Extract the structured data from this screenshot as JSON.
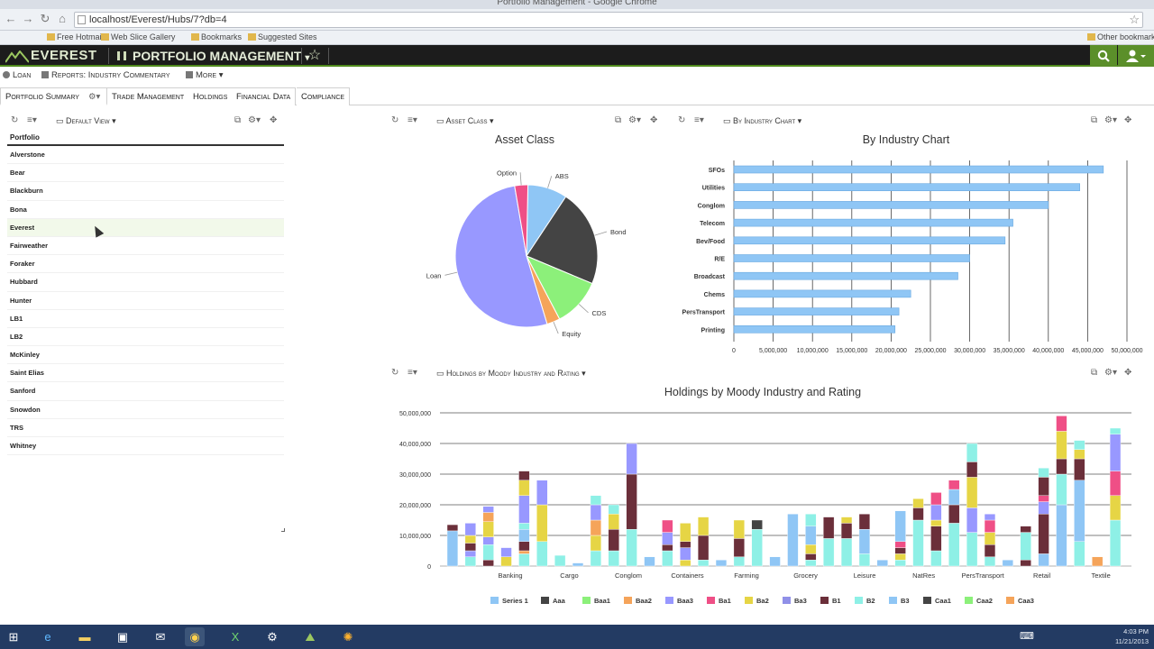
{
  "browser": {
    "window_title": "Portfolio Management - Google Chrome",
    "url": "localhost/Everest/Hubs/7?db=4",
    "bookmarks": [
      "Free Hotmail",
      "Web Slice Gallery",
      "Bookmarks",
      "Suggested Sites",
      "Other bookmarks"
    ]
  },
  "app": {
    "brand": "EVEREST",
    "module": "PORTFOLIO MANAGEMENT",
    "colors": {
      "header_bg": "#1c1c1c",
      "accent": "#5b8f2a"
    }
  },
  "subnav": {
    "loan": "Loan",
    "reports": "Reports: Industry Commentary",
    "more": "More"
  },
  "tabs": [
    {
      "label": "Portfolio Summary",
      "active": true
    },
    {
      "label": "Trade Management"
    },
    {
      "label": "Holdings"
    },
    {
      "label": "Financial Data"
    },
    {
      "label": "Compliance"
    }
  ],
  "portfolio_widget": {
    "view_label": "Default View",
    "column_header": "Portfolio",
    "rows": [
      "Alverstone",
      "Bear",
      "Blackburn",
      "Bona",
      "Everest",
      "Fairweather",
      "Foraker",
      "Hubbard",
      "Hunter",
      "LB1",
      "LB2",
      "McKinley",
      "Saint Elias",
      "Sanford",
      "Snowdon",
      "TRS",
      "Whitney"
    ],
    "highlighted_row": "Everest"
  },
  "asset_widget": {
    "view_label": "Asset Class",
    "title": "Asset Class"
  },
  "industry_widget": {
    "view_label": "By Industry Chart",
    "title": "By Industry Chart"
  },
  "holdings_widget": {
    "view_label": "Holdings by Moody Industry and Rating",
    "title": "Holdings by Moody Industry and Rating"
  },
  "taskbar": {
    "time": "4:03 PM",
    "date": "11/21/2013"
  },
  "chart_data": [
    {
      "type": "pie",
      "title": "Asset Class",
      "slices": [
        {
          "label": "ABS",
          "value": 9,
          "color": "#8fc6f5"
        },
        {
          "label": "Bond",
          "value": 22,
          "color": "#444444"
        },
        {
          "label": "CDS",
          "value": 11,
          "color": "#8cf07a"
        },
        {
          "label": "Equity",
          "value": 3,
          "color": "#f5a45a"
        },
        {
          "label": "Loan",
          "value": 52,
          "color": "#9898ff"
        },
        {
          "label": "Option",
          "value": 3,
          "color": "#ef4f86"
        }
      ]
    },
    {
      "type": "bar",
      "orientation": "horizontal",
      "title": "By Industry Chart",
      "categories": [
        "SFOs",
        "Utilities",
        "Conglom",
        "Telecom",
        "Bev/Food",
        "R/E",
        "Broadcast",
        "Chems",
        "PersTransport",
        "Printing"
      ],
      "values": [
        47000000,
        44000000,
        40000000,
        35500000,
        34500000,
        30000000,
        28500000,
        22500000,
        21000000,
        20500000
      ],
      "xlim": [
        0,
        50000000
      ],
      "x_ticks": [
        "0",
        "5,000,000",
        "10,000,000",
        "15,000,000",
        "20,000,000",
        "25,000,000",
        "30,000,000",
        "35,000,000",
        "40,000,000",
        "45,000,000",
        "50,000,000"
      ],
      "color": "#8fc6f5",
      "grid": true
    },
    {
      "type": "bar",
      "stacked": true,
      "title": "Holdings by Moody Industry and Rating",
      "x_labels": [
        "Banking",
        "Cargo",
        "Conglom",
        "Containers",
        "Farming",
        "Grocery",
        "Leisure",
        "NatRes",
        "PersTransport",
        "Retail",
        "Textile"
      ],
      "ylim": [
        0,
        50000000
      ],
      "y_ticks": [
        "0",
        "10,000,000",
        "20,000,000",
        "30,000,000",
        "40,000,000",
        "50,000,000"
      ],
      "legend_position": "bottom",
      "series": [
        {
          "name": "Series 1",
          "color": "#8fc6f5"
        },
        {
          "name": "Aaa",
          "color": "#444444"
        },
        {
          "name": "Baa1",
          "color": "#8cf07a"
        },
        {
          "name": "Baa2",
          "color": "#f5a45a"
        },
        {
          "name": "Baa3",
          "color": "#9898ff"
        },
        {
          "name": "Ba1",
          "color": "#ef4f86"
        },
        {
          "name": "Ba2",
          "color": "#e6d545"
        },
        {
          "name": "Ba3",
          "color": "#9090e8"
        },
        {
          "name": "B1",
          "color": "#6b2f3a"
        },
        {
          "name": "B2",
          "color": "#8ef0e6"
        },
        {
          "name": "B3",
          "color": "#8fc6f5"
        },
        {
          "name": "Caa1",
          "color": "#444444"
        },
        {
          "name": "Caa2",
          "color": "#8cf07a"
        },
        {
          "name": "Caa3",
          "color": "#f5a45a"
        }
      ],
      "columns": [
        [
          [
            0,
            11.5
          ],
          [
            8,
            2
          ]
        ],
        [
          [
            9,
            3
          ],
          [
            4,
            2
          ],
          [
            8,
            2.5
          ],
          [
            6,
            2.5
          ],
          [
            4,
            4
          ]
        ],
        [
          [
            8,
            2
          ],
          [
            9,
            5
          ],
          [
            4,
            2.5
          ],
          [
            6,
            5
          ],
          [
            3,
            3
          ],
          [
            4,
            2
          ]
        ],
        [
          [
            6,
            3
          ],
          [
            4,
            3
          ]
        ],
        [
          [
            9,
            4
          ],
          [
            3,
            1
          ],
          [
            8,
            3
          ],
          [
            0,
            4
          ],
          [
            9,
            2
          ],
          [
            4,
            9
          ],
          [
            6,
            5
          ],
          [
            8,
            3
          ]
        ],
        [
          [
            9,
            8
          ],
          [
            6,
            12
          ],
          [
            4,
            8
          ]
        ],
        [
          [
            9,
            3.5
          ]
        ],
        [
          [
            0,
            1
          ]
        ],
        [
          [
            9,
            5
          ],
          [
            6,
            5
          ],
          [
            3,
            5
          ],
          [
            4,
            5
          ],
          [
            9,
            3
          ]
        ],
        [
          [
            9,
            5
          ],
          [
            8,
            7
          ],
          [
            6,
            5
          ],
          [
            9,
            3
          ]
        ],
        [
          [
            9,
            12
          ],
          [
            8,
            18
          ],
          [
            4,
            10
          ]
        ],
        [
          [
            0,
            3
          ]
        ],
        [
          [
            9,
            5
          ],
          [
            8,
            2
          ],
          [
            4,
            4
          ],
          [
            5,
            4
          ]
        ],
        [
          [
            6,
            2
          ],
          [
            4,
            4
          ],
          [
            8,
            2
          ],
          [
            6,
            6
          ]
        ],
        [
          [
            9,
            2
          ],
          [
            8,
            8
          ],
          [
            6,
            6
          ]
        ],
        [
          [
            0,
            2
          ]
        ],
        [
          [
            9,
            3
          ],
          [
            8,
            6
          ],
          [
            6,
            6
          ]
        ],
        [
          [
            9,
            12
          ],
          [
            1,
            3
          ]
        ],
        [
          [
            0,
            3
          ]
        ],
        [
          [
            0,
            17
          ]
        ],
        [
          [
            9,
            2
          ],
          [
            8,
            2
          ],
          [
            6,
            3
          ],
          [
            0,
            6
          ],
          [
            9,
            4
          ]
        ],
        [
          [
            9,
            9
          ],
          [
            8,
            7
          ]
        ],
        [
          [
            9,
            9
          ],
          [
            8,
            5
          ],
          [
            6,
            2
          ]
        ],
        [
          [
            9,
            4
          ],
          [
            0,
            8
          ],
          [
            8,
            5
          ]
        ],
        [
          [
            0,
            2
          ]
        ],
        [
          [
            9,
            2
          ],
          [
            6,
            2
          ],
          [
            8,
            2
          ],
          [
            5,
            2
          ],
          [
            0,
            10
          ]
        ],
        [
          [
            9,
            15
          ],
          [
            8,
            4
          ],
          [
            6,
            3
          ]
        ],
        [
          [
            9,
            5
          ],
          [
            8,
            8
          ],
          [
            6,
            2
          ],
          [
            4,
            5
          ],
          [
            5,
            4
          ]
        ],
        [
          [
            9,
            14
          ],
          [
            8,
            6
          ],
          [
            0,
            5
          ],
          [
            5,
            3
          ]
        ],
        [
          [
            9,
            11
          ],
          [
            4,
            8
          ],
          [
            6,
            10
          ],
          [
            8,
            5
          ],
          [
            9,
            6
          ]
        ],
        [
          [
            9,
            3
          ],
          [
            8,
            4
          ],
          [
            6,
            4
          ],
          [
            5,
            4
          ],
          [
            4,
            2
          ]
        ],
        [
          [
            0,
            2
          ]
        ],
        [
          [
            8,
            2
          ],
          [
            9,
            9
          ],
          [
            8,
            2
          ]
        ],
        [
          [
            0,
            4
          ],
          [
            8,
            13
          ],
          [
            4,
            4
          ],
          [
            5,
            2
          ],
          [
            8,
            6
          ],
          [
            9,
            3
          ]
        ],
        [
          [
            0,
            20
          ],
          [
            9,
            10
          ],
          [
            8,
            5
          ],
          [
            6,
            9
          ],
          [
            5,
            5
          ]
        ],
        [
          [
            9,
            8
          ],
          [
            0,
            20
          ],
          [
            8,
            7
          ],
          [
            6,
            3
          ],
          [
            9,
            3
          ]
        ],
        [
          [
            3,
            3
          ]
        ],
        [
          [
            9,
            15
          ],
          [
            6,
            8
          ],
          [
            5,
            8
          ],
          [
            4,
            12
          ],
          [
            9,
            2
          ]
        ]
      ]
    }
  ]
}
